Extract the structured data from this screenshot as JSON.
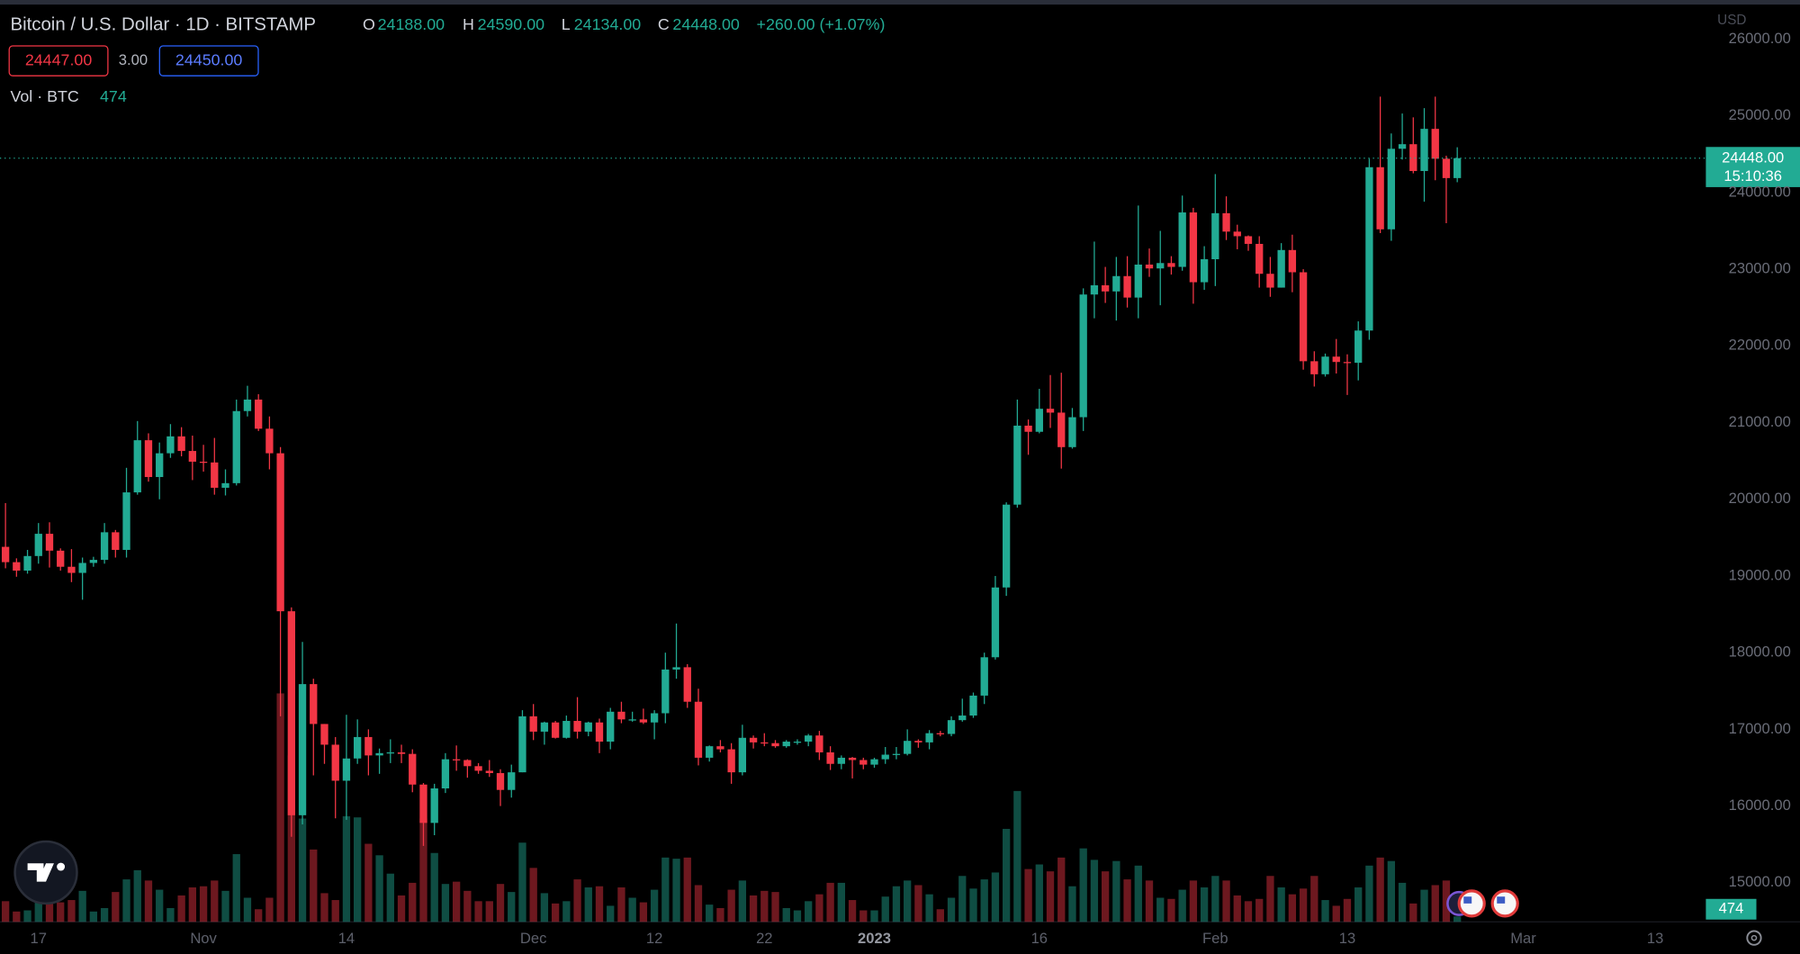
{
  "chart_data": {
    "type": "candlestick",
    "title": "Bitcoin / U.S. Dollar · 1D · BITSTAMP",
    "ohlc_legend": [
      {
        "key": "O",
        "value": "24188.00"
      },
      {
        "key": "H",
        "value": "24590.00"
      },
      {
        "key": "L",
        "value": "24134.00"
      },
      {
        "key": "C",
        "value": "24448.00"
      }
    ],
    "change": "+260.00 (+1.07%)",
    "bid": "24447.00",
    "spread": "3.00",
    "ask": "24450.00",
    "volume_label": "Vol · BTC",
    "price_tag": "24448.00",
    "countdown": "15:10:36",
    "currency": "USD",
    "up_color": "#22ab94",
    "down_color": "#f23645",
    "grid": false,
    "ylim": [
      14490,
      26510
    ],
    "yticks": [
      {
        "value": 15000,
        "label": "15000.00"
      },
      {
        "value": 16000,
        "label": "16000.00"
      },
      {
        "value": 17000,
        "label": "17000.00"
      },
      {
        "value": 18000,
        "label": "18000.00"
      },
      {
        "value": 19000,
        "label": "19000.00"
      },
      {
        "value": 20000,
        "label": "20000.00"
      },
      {
        "value": 21000,
        "label": "21000.00"
      },
      {
        "value": 22000,
        "label": "22000.00"
      },
      {
        "value": 23000,
        "label": "23000.00"
      },
      {
        "value": 24000,
        "label": "24000.00"
      },
      {
        "value": 25000,
        "label": "25000.00"
      },
      {
        "value": 26000,
        "label": "26000.00"
      }
    ],
    "volume_lim": [
      0,
      80300
    ],
    "categories": [
      null,
      null,
      null,
      "17",
      null,
      null,
      null,
      null,
      null,
      null,
      null,
      null,
      null,
      null,
      null,
      null,
      null,
      null,
      "Nov",
      null,
      null,
      null,
      null,
      null,
      null,
      null,
      null,
      null,
      null,
      null,
      null,
      "14",
      null,
      null,
      null,
      null,
      null,
      null,
      null,
      null,
      null,
      null,
      null,
      null,
      null,
      null,
      null,
      null,
      "Dec",
      null,
      null,
      null,
      null,
      null,
      null,
      null,
      null,
      null,
      null,
      "12",
      null,
      null,
      null,
      null,
      null,
      null,
      null,
      null,
      null,
      "22",
      null,
      null,
      null,
      null,
      null,
      null,
      null,
      null,
      null,
      "2023",
      null,
      null,
      null,
      null,
      null,
      null,
      null,
      null,
      null,
      null,
      null,
      null,
      null,
      null,
      "16",
      null,
      null,
      null,
      null,
      null,
      null,
      null,
      null,
      null,
      null,
      null,
      null,
      null,
      null,
      null,
      "Feb",
      null,
      null,
      null,
      null,
      null,
      null,
      null,
      null,
      null,
      null,
      null,
      "13",
      null,
      null,
      null,
      null,
      null,
      null,
      null,
      null,
      null,
      null,
      null,
      null,
      null,
      null,
      null,
      "Mar",
      null,
      null,
      null,
      null,
      null,
      null,
      null,
      null,
      null,
      null,
      null,
      "13",
      null,
      null,
      null,
      null
    ],
    "open": [
      19380,
      19180,
      19070,
      19260,
      19550,
      19330,
      19120,
      19040,
      19170,
      19210,
      19570,
      19340,
      20090,
      20770,
      20290,
      20600,
      20820,
      20630,
      20490,
      20480,
      20150,
      20210,
      21150,
      21300,
      20920,
      20600,
      18540,
      15880,
      17590,
      17070,
      16800,
      16330,
      16620,
      16900,
      16660,
      16690,
      16700,
      16680,
      16280,
      15780,
      16230,
      16610,
      16600,
      16520,
      16460,
      16430,
      16210,
      16440,
      17170,
      16970,
      17090,
      16890,
      17110,
      16970,
      17090,
      16840,
      17230,
      17130,
      17130,
      17090,
      17210,
      17780,
      17810,
      17360,
      16630,
      16780,
      16740,
      16440,
      16890,
      16830,
      16820,
      16780,
      16840,
      16840,
      16920,
      16700,
      16550,
      16630,
      16600,
      16540,
      16610,
      16670,
      16680,
      16850,
      16830,
      16950,
      16940,
      17120,
      17180,
      17440,
      17940,
      18850,
      19930,
      20960,
      20880,
      21180,
      21130,
      20680,
      21070,
      22670,
      22790,
      22710,
      22910,
      22630,
      23060,
      23010,
      23080,
      23030,
      23740,
      22830,
      23130,
      23730,
      23490,
      23430,
      23330,
      22940,
      22760,
      23250,
      22960,
      21800,
      21630,
      21860,
      21790,
      21780,
      22200,
      24330,
      23520,
      24570,
      24630,
      24280,
      24830,
      24440,
      24188,
      null,
      null,
      null,
      null,
      null,
      null,
      null,
      null,
      null,
      null,
      null,
      null,
      null,
      null,
      null,
      null,
      null,
      null,
      null,
      null,
      null,
      null
    ],
    "high": [
      19950,
      19230,
      19340,
      19690,
      19700,
      19360,
      19350,
      19240,
      19250,
      19690,
      19600,
      20410,
      21020,
      20860,
      20740,
      20980,
      20940,
      20830,
      20710,
      20800,
      20390,
      21300,
      21480,
      21370,
      21080,
      20680,
      18590,
      18140,
      17660,
      17070,
      16900,
      17190,
      17130,
      17000,
      16750,
      16870,
      16800,
      16740,
      16300,
      16290,
      16690,
      16790,
      16610,
      16560,
      16600,
      16480,
      16540,
      17250,
      17330,
      17100,
      17110,
      17180,
      17420,
      17100,
      17140,
      17280,
      17360,
      17230,
      17270,
      17250,
      18000,
      18380,
      17850,
      17530,
      16790,
      16860,
      16820,
      17060,
      16920,
      16950,
      16860,
      16860,
      16870,
      16940,
      16980,
      16780,
      16660,
      16640,
      16630,
      16630,
      16770,
      16770,
      17000,
      16870,
      16990,
      16980,
      17170,
      17400,
      17480,
      18000,
      19000,
      19960,
      21300,
      21040,
      21440,
      21620,
      21650,
      21190,
      22750,
      23360,
      23030,
      23160,
      23170,
      23830,
      23270,
      23500,
      23170,
      23960,
      23800,
      23300,
      24240,
      23950,
      23580,
      23440,
      23430,
      23160,
      23340,
      23450,
      23000,
      21930,
      21900,
      22090,
      21890,
      22320,
      24440,
      25250,
      24770,
      25030,
      24980,
      25100,
      25250,
      24480,
      24590,
      null,
      null,
      null,
      null,
      null,
      null,
      null,
      null,
      null,
      null,
      null,
      null,
      null,
      null,
      null,
      null,
      null,
      null,
      null,
      null,
      null,
      null
    ],
    "low": [
      19100,
      18990,
      19030,
      19160,
      19110,
      19070,
      18920,
      18690,
      19120,
      19160,
      19240,
      19240,
      20060,
      20230,
      20000,
      20540,
      20560,
      20250,
      20360,
      20060,
      20050,
      20180,
      21080,
      20890,
      20390,
      17170,
      15600,
      15760,
      16400,
      16550,
      15840,
      15820,
      16550,
      16400,
      16420,
      16560,
      16560,
      16180,
      15480,
      15620,
      16170,
      16460,
      16370,
      16420,
      16380,
      16000,
      16110,
      16440,
      16860,
      16800,
      16880,
      16880,
      16880,
      16910,
      16690,
      16740,
      17080,
      17100,
      17070,
      16870,
      17080,
      17660,
      17280,
      16530,
      16580,
      16700,
      16290,
      16400,
      16750,
      16780,
      16760,
      16760,
      16800,
      16780,
      16600,
      16470,
      16480,
      16360,
      16480,
      16500,
      16550,
      16610,
      16660,
      16760,
      16740,
      16910,
      16910,
      17100,
      17150,
      17330,
      17910,
      18740,
      19890,
      20580,
      20860,
      20930,
      20400,
      20660,
      20890,
      22360,
      22560,
      22330,
      22500,
      22360,
      22900,
      22530,
      22930,
      22980,
      22550,
      22730,
      22780,
      23380,
      23260,
      23240,
      22760,
      22640,
      22760,
      22700,
      21690,
      21470,
      21600,
      21640,
      21360,
      21550,
      22080,
      23470,
      23370,
      24430,
      24250,
      23880,
      24160,
      23600,
      24134,
      null,
      null,
      null,
      null,
      null,
      null,
      null,
      null,
      null,
      null,
      null,
      null,
      null,
      null,
      null,
      null,
      null,
      null,
      null,
      null,
      null,
      null
    ],
    "close": [
      19180,
      19070,
      19260,
      19550,
      19330,
      19120,
      19040,
      19170,
      19210,
      19570,
      19340,
      20090,
      20770,
      20290,
      20600,
      20820,
      20630,
      20490,
      20480,
      20150,
      20210,
      21150,
      21300,
      20920,
      20600,
      18540,
      15880,
      17590,
      17070,
      16800,
      16330,
      16620,
      16900,
      16660,
      16690,
      16700,
      16680,
      16280,
      15780,
      16230,
      16610,
      16600,
      16520,
      16460,
      16430,
      16210,
      16440,
      17170,
      16970,
      17090,
      16890,
      17110,
      16970,
      17090,
      16840,
      17230,
      17130,
      17130,
      17090,
      17210,
      17780,
      17810,
      17360,
      16630,
      16780,
      16740,
      16440,
      16890,
      16830,
      16820,
      16780,
      16840,
      16840,
      16920,
      16700,
      16550,
      16630,
      16600,
      16540,
      16610,
      16670,
      16680,
      16850,
      16830,
      16950,
      16940,
      17120,
      17180,
      17440,
      17940,
      18850,
      19930,
      20960,
      20880,
      21180,
      21130,
      20680,
      21070,
      22670,
      22790,
      22710,
      22910,
      22630,
      23060,
      23010,
      23080,
      23030,
      23740,
      22830,
      23130,
      23730,
      23490,
      23430,
      23330,
      22940,
      22760,
      23250,
      22960,
      21800,
      21630,
      21860,
      21790,
      21780,
      22200,
      24330,
      23520,
      24570,
      24630,
      24280,
      24830,
      24440,
      24188,
      24448,
      null,
      null,
      null,
      null,
      null,
      null,
      null,
      null,
      null,
      null,
      null,
      null,
      null,
      null,
      null,
      null,
      null,
      null,
      null,
      null,
      null,
      null
    ],
    "volume": [
      1800,
      900,
      1000,
      2100,
      2800,
      1700,
      1900,
      2700,
      900,
      1200,
      2600,
      3700,
      4500,
      3600,
      2800,
      1200,
      2300,
      3000,
      3100,
      3600,
      2700,
      5900,
      2100,
      1100,
      2100,
      19900,
      14500,
      9000,
      6300,
      2500,
      1900,
      9200,
      9100,
      6800,
      5800,
      4200,
      2300,
      3400,
      9000,
      6000,
      3300,
      3500,
      2700,
      1800,
      1800,
      3300,
      2600,
      6900,
      4700,
      2500,
      1600,
      1800,
      3700,
      3000,
      3100,
      1400,
      3000,
      2100,
      1700,
      2800,
      5600,
      5500,
      5600,
      3200,
      1500,
      1200,
      2800,
      3600,
      2300,
      2700,
      2600,
      1200,
      1000,
      1800,
      2400,
      3400,
      3400,
      1900,
      1000,
      1000,
      2200,
      3100,
      3600,
      3200,
      2400,
      1100,
      2100,
      4000,
      2900,
      3700,
      4300,
      8100,
      11400,
      4600,
      5000,
      4400,
      5600,
      3100,
      6400,
      5400,
      4400,
      5300,
      3700,
      4900,
      3600,
      2100,
      2000,
      2800,
      3600,
      3000,
      4000,
      3600,
      2300,
      1800,
      2000,
      4000,
      3000,
      2400,
      2900,
      4000,
      1900,
      1400,
      2000,
      3000,
      4900,
      5600,
      5300,
      3400,
      1600,
      2800,
      3200,
      3600,
      474,
      null,
      null,
      null,
      null,
      null,
      null,
      null,
      null,
      null,
      null,
      null,
      null,
      null,
      null,
      null,
      null,
      null,
      null,
      null,
      null,
      null,
      null
    ]
  }
}
